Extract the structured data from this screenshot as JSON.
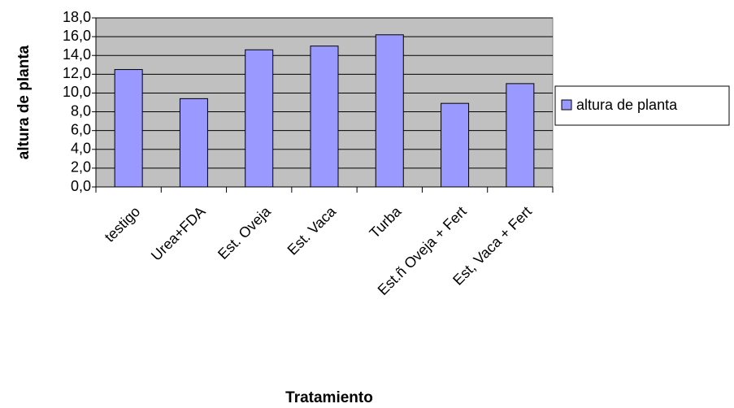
{
  "chart_data": {
    "type": "bar",
    "x_label": "Tratamiento",
    "y_label": "altura de planta",
    "categories": [
      "testigo",
      "Urea+FDA",
      "Est. Oveja",
      "Est. Vaca",
      "Turba",
      "Est.ñ Oveja + Fert",
      "Est, Vaca + Fert"
    ],
    "series": [
      {
        "name": "altura de planta",
        "color": "#9999ff",
        "values": [
          12.5,
          9.4,
          14.6,
          15.0,
          16.2,
          8.9,
          11.0
        ]
      }
    ],
    "ylim": [
      0,
      18
    ],
    "yticks": [
      {
        "value": 0,
        "label": "0,0"
      },
      {
        "value": 2,
        "label": "2,0"
      },
      {
        "value": 4,
        "label": "4,0"
      },
      {
        "value": 6,
        "label": "6,0"
      },
      {
        "value": 8,
        "label": "8,0"
      },
      {
        "value": 10,
        "label": "10,0"
      },
      {
        "value": 12,
        "label": "12,0"
      },
      {
        "value": 14,
        "label": "14,0"
      },
      {
        "value": 16,
        "label": "16,0"
      },
      {
        "value": 18,
        "label": "18,0"
      }
    ],
    "grid": true,
    "plot_background": "#c0c0c0",
    "legend": "right"
  }
}
